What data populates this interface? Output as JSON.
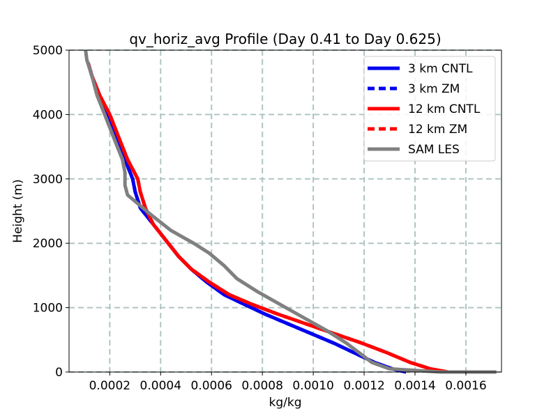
{
  "chart_data": {
    "type": "line",
    "title": "qv_horiz_avg Profile (Day 0.41 to Day 0.625)",
    "xlabel": "kg/kg",
    "ylabel": "Height (m)",
    "xlim": [
      4e-05,
      0.00174
    ],
    "ylim": [
      0,
      5000
    ],
    "xticks": [
      0.0002,
      0.0004,
      0.0006,
      0.0008,
      0.001,
      0.0012,
      0.0014,
      0.0016
    ],
    "xtick_labels": [
      "0.0002",
      "0.0004",
      "0.0006",
      "0.0008",
      "0.0010",
      "0.0012",
      "0.0014",
      "0.0016"
    ],
    "yticks": [
      0,
      1000,
      2000,
      3000,
      4000,
      5000
    ],
    "ytick_labels": [
      "0",
      "1000",
      "2000",
      "3000",
      "4000",
      "5000"
    ],
    "grid": true,
    "legend_position": "top-right",
    "series": [
      {
        "name": "3 km CNTL",
        "color": "#0000ee",
        "dash": "solid",
        "x": [
          0.001365,
          0.00131,
          0.00124,
          0.00116,
          0.00108,
          0.00099,
          0.0009,
          0.00081,
          0.00073,
          0.00065,
          0.00058,
          0.00052,
          0.00047,
          0.00042,
          0.00037,
          0.00032,
          0.0003,
          0.00029,
          0.00026,
          0.00023,
          0.00019,
          0.00016,
          0.00013,
          0.000115
        ],
        "y": [
          0,
          50,
          150,
          300,
          450,
          600,
          750,
          900,
          1050,
          1200,
          1400,
          1600,
          1800,
          2050,
          2300,
          2550,
          2800,
          3000,
          3300,
          3600,
          4000,
          4300,
          4600,
          4800
        ]
      },
      {
        "name": "3 km ZM",
        "color": "#0000ee",
        "dash": "dashed",
        "x": [
          0.001365,
          0.00131,
          0.00124,
          0.00116,
          0.00108,
          0.00099,
          0.0009,
          0.00081,
          0.00073,
          0.00065,
          0.00058,
          0.00052,
          0.00047,
          0.00042,
          0.00037,
          0.00032,
          0.0003,
          0.00029,
          0.00026,
          0.00023,
          0.00019,
          0.00016,
          0.00013,
          0.000115
        ],
        "y": [
          0,
          50,
          150,
          300,
          450,
          600,
          750,
          900,
          1050,
          1200,
          1400,
          1600,
          1800,
          2050,
          2300,
          2550,
          2800,
          3000,
          3300,
          3600,
          4000,
          4300,
          4600,
          4800
        ]
      },
      {
        "name": "12 km CNTL",
        "color": "#ff0000",
        "dash": "solid",
        "x": [
          0.00153,
          0.00146,
          0.00138,
          0.00129,
          0.00119,
          0.00108,
          0.00097,
          0.00086,
          0.00076,
          0.00067,
          0.00059,
          0.00052,
          0.00047,
          0.00042,
          0.00037,
          0.00034,
          0.00032,
          0.00031,
          0.00027,
          0.00024,
          0.0002,
          0.00016,
          0.00013,
          0.000115
        ],
        "y": [
          0,
          50,
          150,
          300,
          450,
          600,
          750,
          900,
          1050,
          1200,
          1400,
          1600,
          1800,
          2050,
          2300,
          2550,
          2800,
          3000,
          3300,
          3600,
          4000,
          4300,
          4600,
          4800
        ]
      },
      {
        "name": "12 km ZM",
        "color": "#ff0000",
        "dash": "dashed",
        "x": [
          0.00153,
          0.00146,
          0.00138,
          0.00129,
          0.00119,
          0.00108,
          0.00097,
          0.00086,
          0.00076,
          0.00067,
          0.00059,
          0.00052,
          0.00047,
          0.00042,
          0.00037,
          0.00034,
          0.00032,
          0.00031,
          0.00027,
          0.00024,
          0.0002,
          0.00016,
          0.00013,
          0.000115
        ],
        "y": [
          0,
          50,
          150,
          300,
          450,
          600,
          750,
          900,
          1050,
          1200,
          1400,
          1600,
          1800,
          2050,
          2300,
          2550,
          2800,
          3000,
          3300,
          3600,
          4000,
          4300,
          4600,
          4800
        ]
      },
      {
        "name": "SAM LES",
        "color": "#808080",
        "dash": "solid",
        "x": [
          0.00172,
          0.0015,
          0.0013,
          0.00123,
          0.00118,
          0.00113,
          0.00105,
          0.00096,
          0.00087,
          0.00078,
          0.0007,
          0.00065,
          0.00059,
          0.00053,
          0.00044,
          0.00036,
          0.0003,
          0.00027,
          0.00026,
          0.00026,
          0.00025,
          0.00022,
          0.00018,
          0.00015,
          0.00013,
          0.00011,
          0.000105
        ],
        "y": [
          0,
          0,
          50,
          150,
          300,
          450,
          650,
          850,
          1050,
          1250,
          1450,
          1650,
          1850,
          2000,
          2200,
          2450,
          2650,
          2750,
          2900,
          3100,
          3300,
          3600,
          4000,
          4300,
          4600,
          4850,
          5000
        ]
      }
    ]
  }
}
